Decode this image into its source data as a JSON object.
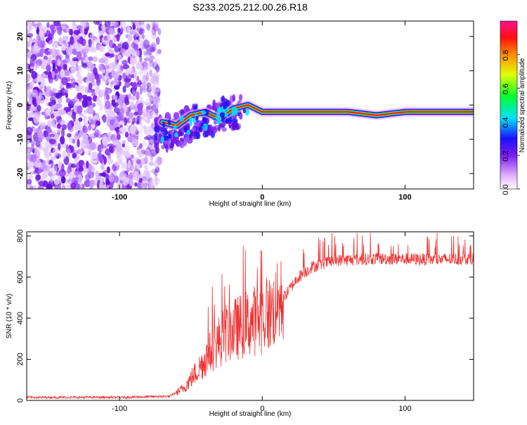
{
  "chart_data": [
    {
      "type": "heatmap",
      "title": "S233.2025.212.00.26.R18",
      "xlabel": "Height of straight line (km)",
      "ylabel": "Frequency (Hz)",
      "xlim": [
        -165,
        148
      ],
      "ylim": [
        -24.5,
        24.5
      ],
      "x_ticks": [
        -100,
        0,
        100
      ],
      "y_ticks": [
        -20,
        -10,
        0,
        10,
        20
      ],
      "colorbar": {
        "label": "Normalized spectral amplitude",
        "range": [
          0,
          1
        ],
        "ticks": [
          0.0,
          0.2,
          0.4,
          0.6,
          0.8
        ]
      },
      "noise_region_x": [
        -165,
        -72
      ],
      "ridge": [
        {
          "x": -70,
          "y": -5
        },
        {
          "x": -60,
          "y": -6
        },
        {
          "x": -50,
          "y": -3
        },
        {
          "x": -40,
          "y": -2
        },
        {
          "x": -30,
          "y": -4
        },
        {
          "x": -20,
          "y": -1
        },
        {
          "x": -10,
          "y": 0
        },
        {
          "x": 0,
          "y": -2
        },
        {
          "x": 20,
          "y": -2
        },
        {
          "x": 60,
          "y": -2
        },
        {
          "x": 80,
          "y": -3
        },
        {
          "x": 100,
          "y": -2
        },
        {
          "x": 148,
          "y": -2
        }
      ]
    },
    {
      "type": "line",
      "title": "",
      "xlabel": "Height of straight line (km)",
      "ylabel": "SNR (10 * v/v)",
      "xlim": [
        -165,
        148
      ],
      "ylim": [
        0,
        820
      ],
      "x_ticks": [
        -100,
        0,
        100
      ],
      "y_ticks": [
        0,
        200,
        400,
        600,
        800
      ],
      "line_color": "#ee3333",
      "envelope": [
        {
          "x": -165,
          "y": 15
        },
        {
          "x": -100,
          "y": 15
        },
        {
          "x": -65,
          "y": 20
        },
        {
          "x": -55,
          "y": 60
        },
        {
          "x": -45,
          "y": 150
        },
        {
          "x": -35,
          "y": 250
        },
        {
          "x": -25,
          "y": 330
        },
        {
          "x": -15,
          "y": 360
        },
        {
          "x": -5,
          "y": 390
        },
        {
          "x": 5,
          "y": 420
        },
        {
          "x": 15,
          "y": 500
        },
        {
          "x": 25,
          "y": 600
        },
        {
          "x": 35,
          "y": 650
        },
        {
          "x": 50,
          "y": 680
        },
        {
          "x": 80,
          "y": 690
        },
        {
          "x": 120,
          "y": 685
        },
        {
          "x": 148,
          "y": 690
        }
      ]
    }
  ]
}
